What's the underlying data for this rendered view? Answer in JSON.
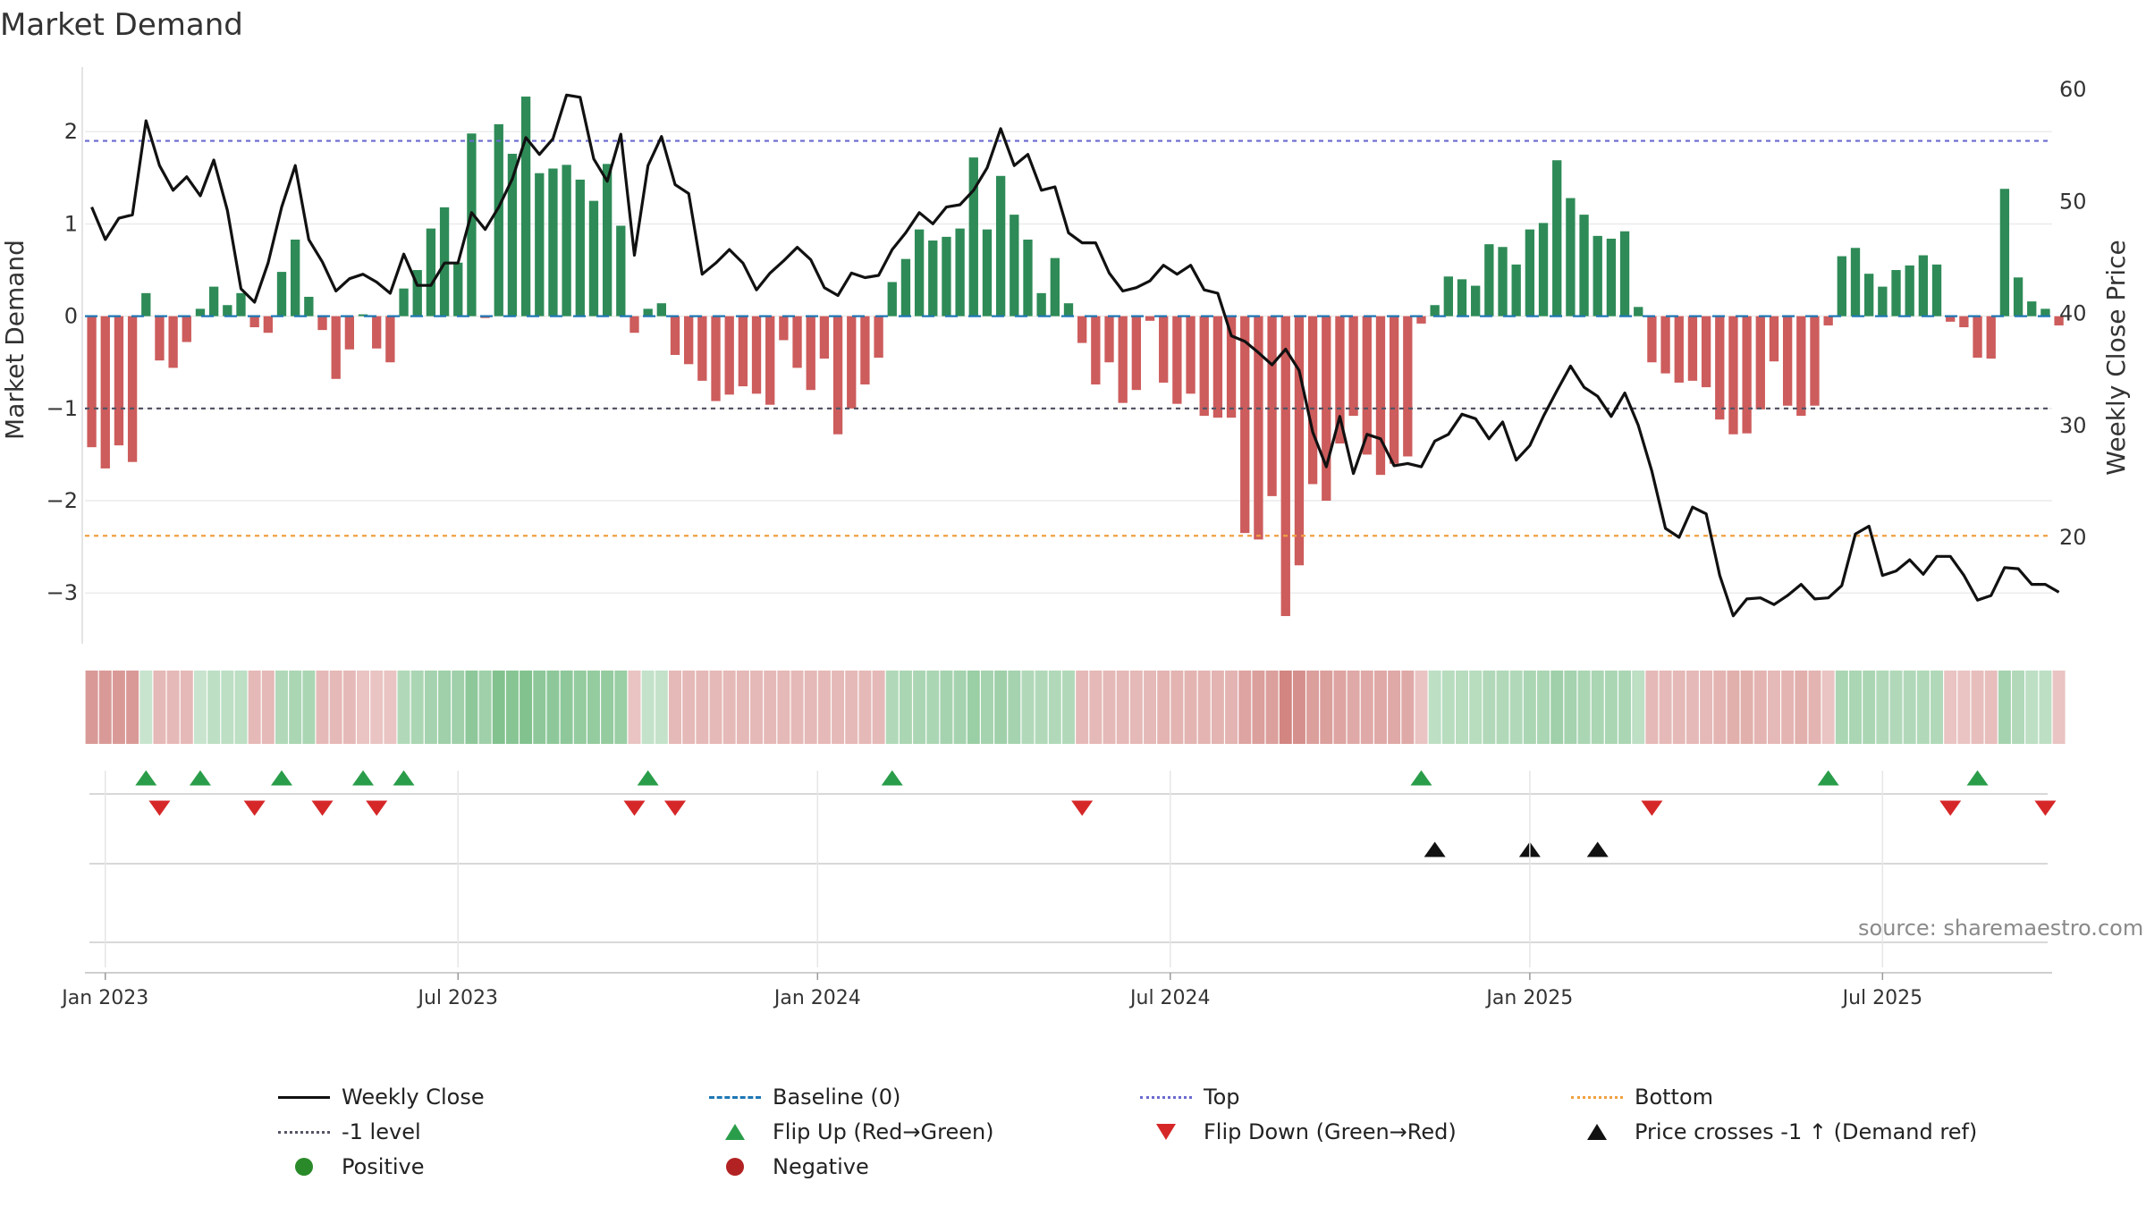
{
  "title": "Market Demand",
  "source": "source: sharemaestro.com",
  "chart_data": {
    "type": "bar",
    "ylabel_left": "Market Demand",
    "ylabel_right": "Weekly Close Price",
    "ylim_left": [
      -3.55,
      2.7
    ],
    "ylim_right": [
      10.5,
      62
    ],
    "yticks_left": [
      2,
      1,
      0,
      -1,
      -2,
      -3
    ],
    "yticks_left_labels": [
      "2",
      "1",
      "0",
      "−1",
      "−2",
      "−3"
    ],
    "yticks_right": [
      60,
      50,
      40,
      30,
      20
    ],
    "yticks_right_labels": [
      "60",
      "50",
      "40",
      "30",
      "20"
    ],
    "x_start": "2022-12-26",
    "week_count": 145,
    "xticks": [
      {
        "week": 1,
        "label": "Jan 2023"
      },
      {
        "week": 27,
        "label": "Jul 2023"
      },
      {
        "week": 53.5,
        "label": "Jan 2024"
      },
      {
        "week": 79.5,
        "label": "Jul 2024"
      },
      {
        "week": 106,
        "label": "Jan 2025"
      },
      {
        "week": 132,
        "label": "Jul 2025"
      }
    ],
    "reference_lines": [
      {
        "name": "Top",
        "value": 1.9,
        "color": "#6a6ad0"
      },
      {
        "name": "-1 level",
        "value": -1,
        "color": "#555566"
      },
      {
        "name": "Bottom",
        "value": -2.38,
        "color": "#f0a040"
      },
      {
        "name": "Baseline (0)",
        "value": 0,
        "color": "#1f77b4"
      }
    ],
    "demand": [
      -1.42,
      -1.65,
      -1.4,
      -1.58,
      0.25,
      -0.48,
      -0.56,
      -0.28,
      0.08,
      0.32,
      0.12,
      0.25,
      -0.12,
      -0.18,
      0.48,
      0.83,
      0.21,
      -0.15,
      -0.68,
      -0.36,
      0.02,
      -0.35,
      -0.5,
      0.3,
      0.5,
      0.95,
      1.18,
      0.58,
      1.98,
      -0.02,
      2.08,
      1.76,
      2.38,
      1.55,
      1.6,
      1.64,
      1.48,
      1.25,
      1.65,
      0.98,
      -0.18,
      0.08,
      0.14,
      -0.42,
      -0.52,
      -0.7,
      -0.92,
      -0.85,
      -0.76,
      -0.84,
      -0.96,
      -0.26,
      -0.56,
      -0.8,
      -0.46,
      -1.28,
      -1.0,
      -0.74,
      -0.45,
      0.37,
      0.62,
      0.94,
      0.82,
      0.86,
      0.95,
      1.72,
      0.94,
      1.52,
      1.1,
      0.83,
      0.25,
      0.63,
      0.14,
      -0.29,
      -0.74,
      -0.5,
      -0.94,
      -0.8,
      -0.05,
      -0.72,
      -0.95,
      -0.84,
      -1.08,
      -1.1,
      -1.1,
      -2.35,
      -2.42,
      -1.95,
      -3.25,
      -2.7,
      -1.82,
      -2.0,
      -1.38,
      -1.08,
      -1.5,
      -1.72,
      -1.6,
      -1.52,
      -0.08,
      0.12,
      0.43,
      0.4,
      0.33,
      0.78,
      0.75,
      0.56,
      0.94,
      1.01,
      1.69,
      1.28,
      1.1,
      0.87,
      0.84,
      0.92,
      0.1,
      -0.5,
      -0.62,
      -0.72,
      -0.7,
      -0.77,
      -1.12,
      -1.28,
      -1.27,
      -1.01,
      -0.49,
      -0.97,
      -1.08,
      -0.97,
      -0.1,
      0.65,
      0.74,
      0.46,
      0.32,
      0.5,
      0.55,
      0.66,
      0.56,
      -0.06,
      -0.12,
      -0.45,
      -0.46,
      1.38,
      0.42,
      0.16,
      0.08,
      -0.1
    ],
    "weekly_close": [
      49.5,
      46.6,
      48.5,
      48.8,
      57.2,
      53.2,
      51.0,
      52.2,
      50.5,
      53.7,
      49.2,
      42.2,
      41.0,
      44.5,
      49.5,
      53.2,
      46.6,
      44.6,
      42.0,
      43.1,
      43.5,
      42.8,
      41.8,
      45.3,
      42.5,
      42.5,
      44.5,
      44.5,
      49.0,
      47.5,
      49.5,
      52.0,
      55.7,
      54.2,
      55.6,
      59.5,
      59.3,
      53.8,
      51.8,
      56.0,
      45.2,
      53.2,
      55.8,
      51.5,
      50.7,
      43.5,
      44.5,
      45.7,
      44.5,
      42.1,
      43.6,
      44.7,
      45.9,
      44.8,
      42.3,
      41.6,
      43.6,
      43.2,
      43.4,
      45.7,
      47.2,
      49.0,
      48.0,
      49.5,
      49.7,
      51.0,
      53.0,
      56.5,
      53.2,
      54.2,
      51.0,
      51.3,
      47.2,
      46.3,
      46.3,
      43.6,
      42.0,
      42.3,
      42.9,
      44.3,
      43.5,
      44.3,
      42.1,
      41.8,
      38.0,
      37.5,
      36.5,
      35.4,
      36.8,
      34.9,
      29.4,
      26.3,
      30.8,
      25.7,
      29.2,
      28.8,
      26.4,
      26.6,
      26.3,
      28.6,
      29.2,
      31.0,
      30.6,
      28.8,
      30.3,
      26.9,
      28.2,
      30.8,
      33.1,
      35.3,
      33.4,
      32.6,
      30.8,
      32.9,
      30.0,
      25.9,
      20.8,
      20.0,
      22.7,
      22.1,
      16.6,
      13.0,
      14.5,
      14.6,
      14.0,
      14.8,
      15.8,
      14.5,
      14.6,
      15.7,
      20.3,
      21.0,
      16.6,
      17.0,
      18.0,
      16.7,
      18.3,
      18.3,
      16.6,
      14.4,
      14.8,
      17.3,
      17.2,
      15.8,
      15.8,
      15.1
    ],
    "color_strip": [
      -0.6,
      -0.6,
      -0.6,
      -0.6,
      0.1,
      -0.3,
      -0.3,
      -0.3,
      0.1,
      0.2,
      0.2,
      0.2,
      -0.3,
      -0.3,
      0.3,
      0.35,
      0.35,
      -0.3,
      -0.3,
      -0.3,
      -0.2,
      -0.2,
      -0.2,
      0.3,
      0.35,
      0.4,
      0.45,
      0.45,
      0.6,
      0.45,
      0.7,
      0.65,
      0.7,
      0.6,
      0.6,
      0.6,
      0.55,
      0.55,
      0.55,
      0.5,
      -0.2,
      0.15,
      0.15,
      -0.3,
      -0.3,
      -0.3,
      -0.3,
      -0.3,
      -0.3,
      -0.3,
      -0.3,
      -0.3,
      -0.3,
      -0.3,
      -0.3,
      -0.3,
      -0.3,
      -0.3,
      -0.3,
      0.3,
      0.35,
      0.35,
      0.35,
      0.4,
      0.4,
      0.5,
      0.4,
      0.45,
      0.4,
      0.3,
      0.3,
      0.3,
      0.3,
      -0.3,
      -0.3,
      -0.3,
      -0.3,
      -0.3,
      -0.3,
      -0.35,
      -0.35,
      -0.35,
      -0.35,
      -0.35,
      -0.35,
      -0.5,
      -0.55,
      -0.55,
      -0.8,
      -0.7,
      -0.55,
      -0.55,
      -0.5,
      -0.45,
      -0.45,
      -0.45,
      -0.45,
      -0.45,
      -0.2,
      0.2,
      0.25,
      0.25,
      0.25,
      0.3,
      0.3,
      0.3,
      0.35,
      0.35,
      0.45,
      0.4,
      0.35,
      0.35,
      0.35,
      0.35,
      0.2,
      -0.3,
      -0.3,
      -0.3,
      -0.3,
      -0.3,
      -0.35,
      -0.4,
      -0.4,
      -0.35,
      -0.3,
      -0.35,
      -0.4,
      -0.35,
      -0.2,
      0.35,
      0.35,
      0.35,
      0.3,
      0.3,
      0.3,
      0.3,
      0.3,
      -0.2,
      -0.2,
      -0.25,
      -0.25,
      0.4,
      0.3,
      0.2,
      0.2,
      -0.2
    ],
    "flip_up_weeks": [
      4,
      8,
      14,
      20,
      23,
      41,
      59,
      98,
      128,
      139
    ],
    "flip_down_weeks": [
      5,
      12,
      17,
      21,
      40,
      43,
      73,
      115,
      137,
      144
    ],
    "price_cross_weeks": [
      99,
      106,
      111
    ],
    "legend": [
      {
        "label": "Weekly Close",
        "symbol": "line-black"
      },
      {
        "label": "Baseline (0)",
        "symbol": "dash-blue"
      },
      {
        "label": "Top",
        "symbol": "dot-purple"
      },
      {
        "label": "Bottom",
        "symbol": "dot-orange"
      },
      {
        "label": "-1 level",
        "symbol": "dot-gray"
      },
      {
        "label": "Flip Up (Red→Green)",
        "symbol": "triangle-up-green"
      },
      {
        "label": "Flip Down (Green→Red)",
        "symbol": "triangle-down-red"
      },
      {
        "label": "Price crosses -1 ↑ (Demand ref)",
        "symbol": "triangle-up-black"
      },
      {
        "label": "Positive",
        "symbol": "circle-green"
      },
      {
        "label": "Negative",
        "symbol": "circle-red"
      }
    ]
  },
  "colors": {
    "positive_bar": "#2e8b57",
    "negative_bar": "#cd5c5c",
    "price_line": "#111111",
    "flip_up": "#2a9d4a",
    "flip_down": "#d62728",
    "positive_dot": "#2a8a2a",
    "negative_dot": "#b22222"
  }
}
